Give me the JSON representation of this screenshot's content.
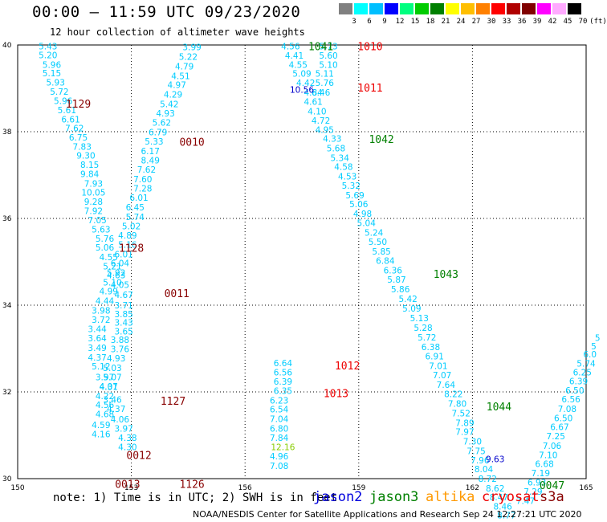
{
  "title": "00:00 – 11:59 UTC 09/23/2020",
  "subtitle": "12 hour collection of altimeter wave heights",
  "note": "note: 1) Time is in UTC; 2) SWH is in feet",
  "credit": "NOAA/NESDIS Center for Satellite Applications and Research   Sep 24 12:27:21 UTC 2020",
  "satellites": [
    {
      "label": "jason2",
      "color": "#0000dd"
    },
    {
      "label": "jason3",
      "color": "#008000"
    },
    {
      "label": "altika",
      "color": "#ff9900"
    },
    {
      "label": "cryosat",
      "color": "#ee0000"
    },
    {
      "label": "s3a",
      "color": "#880000"
    }
  ],
  "colorbar": {
    "colors": [
      "#808080",
      "#00ffff",
      "#00bfff",
      "#0000ff",
      "#00ff7f",
      "#00cc00",
      "#008000",
      "#ffff00",
      "#ffbf00",
      "#ff8000",
      "#ff0000",
      "#b00000",
      "#800000",
      "#ff00ff",
      "#ffaaff",
      "#000000"
    ],
    "labels": [
      "3",
      "6",
      "9",
      "12",
      "15",
      "18",
      "21",
      "24",
      "27",
      "30",
      "33",
      "36",
      "39",
      "42",
      "45",
      "70",
      "(ft)"
    ]
  },
  "chart_data": {
    "type": "scatter",
    "xlabel": "",
    "ylabel": "",
    "xlim": [
      150,
      165
    ],
    "ylim": [
      30,
      40
    ],
    "xticks": [
      "150",
      "153",
      "156",
      "159",
      "162",
      "165"
    ],
    "yticks": [
      "30",
      "32",
      "34",
      "36",
      "38",
      "40"
    ],
    "grid": true,
    "series": [
      {
        "color": "#00ccff",
        "points": [
          [
            150.8,
            39.97,
            "5.43"
          ],
          [
            150.8,
            39.77,
            "5.20"
          ],
          [
            150.9,
            39.55,
            "5.96"
          ],
          [
            150.9,
            39.35,
            "5.15"
          ],
          [
            151.0,
            39.14,
            "5.93"
          ],
          [
            151.1,
            38.93,
            "5.72"
          ],
          [
            151.2,
            38.71,
            "5.96"
          ],
          [
            151.3,
            38.5,
            "5.61"
          ],
          [
            151.4,
            38.29,
            "6.61"
          ],
          [
            151.5,
            38.08,
            "7.62"
          ],
          [
            151.6,
            37.87,
            "6.75"
          ],
          [
            151.7,
            37.66,
            "7.83"
          ],
          [
            151.8,
            37.45,
            "9.30"
          ],
          [
            151.9,
            37.24,
            "8.15"
          ],
          [
            151.9,
            37.03,
            "9.84"
          ],
          [
            152.0,
            36.81,
            "7.93"
          ],
          [
            152.0,
            36.6,
            "10.05"
          ],
          [
            152.0,
            36.39,
            "9.28"
          ],
          [
            152.0,
            36.18,
            "7.92"
          ],
          [
            152.1,
            35.96,
            "7.05"
          ],
          [
            152.2,
            35.75,
            "5.63"
          ],
          [
            152.3,
            35.54,
            "5.76"
          ],
          [
            152.3,
            35.33,
            "5.06"
          ],
          [
            152.4,
            35.11,
            "4.55"
          ],
          [
            152.5,
            34.9,
            "5.21"
          ],
          [
            152.6,
            34.69,
            "4.63"
          ],
          [
            152.7,
            34.47,
            "4.05"
          ],
          [
            152.8,
            34.24,
            "4.67"
          ],
          [
            152.8,
            34.0,
            "3.71"
          ],
          [
            152.8,
            33.8,
            "3.85"
          ],
          [
            152.8,
            33.6,
            "3.43"
          ],
          [
            152.8,
            33.4,
            "3.65"
          ],
          [
            152.7,
            33.2,
            "3.88"
          ],
          [
            152.7,
            32.99,
            "3.76"
          ],
          [
            152.6,
            32.78,
            "4.93"
          ],
          [
            152.5,
            32.56,
            "5.03"
          ],
          [
            152.5,
            32.34,
            "5.07"
          ],
          [
            152.4,
            32.12,
            "4.31"
          ],
          [
            152.3,
            31.91,
            "4.22"
          ],
          [
            152.3,
            31.7,
            "4.56"
          ],
          [
            152.3,
            31.49,
            "4.68"
          ],
          [
            152.2,
            31.24,
            "4.59"
          ],
          [
            152.2,
            31.03,
            "4.16"
          ],
          [
            154.6,
            39.95,
            "3.99"
          ],
          [
            154.5,
            39.73,
            "5.22"
          ],
          [
            154.4,
            39.51,
            "4.79"
          ],
          [
            154.3,
            39.29,
            "4.51"
          ],
          [
            154.2,
            39.08,
            "4.97"
          ],
          [
            154.1,
            38.86,
            "4.29"
          ],
          [
            154.0,
            38.64,
            "5.42"
          ],
          [
            153.9,
            38.43,
            "4.93"
          ],
          [
            153.8,
            38.21,
            "5.62"
          ],
          [
            153.7,
            37.99,
            "6.79"
          ],
          [
            153.6,
            37.78,
            "5.33"
          ],
          [
            153.5,
            37.56,
            "6.17"
          ],
          [
            153.5,
            37.34,
            "8.49"
          ],
          [
            153.4,
            37.13,
            "7.62"
          ],
          [
            153.3,
            36.91,
            "7.60"
          ],
          [
            153.3,
            36.69,
            "7.28"
          ],
          [
            153.2,
            36.48,
            "6.01"
          ],
          [
            153.1,
            36.26,
            "6.45"
          ],
          [
            153.1,
            36.04,
            "5.74"
          ],
          [
            153.0,
            35.82,
            "5.02"
          ],
          [
            152.9,
            35.61,
            "4.89"
          ],
          [
            152.9,
            35.4,
            "5.16"
          ],
          [
            152.8,
            35.18,
            "6.01"
          ],
          [
            152.7,
            34.97,
            "6.04"
          ],
          [
            152.6,
            34.75,
            "5.92"
          ],
          [
            152.5,
            34.53,
            "5.10"
          ],
          [
            152.4,
            34.32,
            "4.99"
          ],
          [
            152.3,
            34.1,
            "4.44"
          ],
          [
            152.2,
            33.88,
            "3.98"
          ],
          [
            152.2,
            33.67,
            "3.72"
          ],
          [
            152.1,
            33.45,
            "3.44"
          ],
          [
            152.1,
            33.24,
            "3.64"
          ],
          [
            152.1,
            33.02,
            "3.49"
          ],
          [
            152.1,
            32.8,
            "4.37"
          ],
          [
            152.2,
            32.59,
            "5.12"
          ],
          [
            152.3,
            32.34,
            "3.97"
          ],
          [
            152.4,
            32.13,
            "4.07"
          ],
          [
            152.5,
            31.82,
            "3.46"
          ],
          [
            152.6,
            31.61,
            "4.37"
          ],
          [
            152.7,
            31.37,
            "4.06"
          ],
          [
            152.8,
            31.16,
            "3.97"
          ],
          [
            152.9,
            30.94,
            "4.38"
          ],
          [
            152.9,
            30.73,
            "4.30"
          ],
          [
            157.2,
            39.97,
            "4.56"
          ],
          [
            157.3,
            39.76,
            "4.41"
          ],
          [
            157.4,
            39.55,
            "4.55"
          ],
          [
            157.5,
            39.34,
            "5.09"
          ],
          [
            157.6,
            39.13,
            "4.42"
          ],
          [
            157.8,
            38.91,
            "4.84"
          ],
          [
            157.8,
            38.69,
            "4.61"
          ],
          [
            157.9,
            38.47,
            "4.10"
          ],
          [
            158.0,
            38.26,
            "4.72"
          ],
          [
            158.1,
            38.05,
            "4.95"
          ],
          [
            158.3,
            37.84,
            "4.33"
          ],
          [
            158.4,
            37.62,
            "5.68"
          ],
          [
            158.5,
            37.4,
            "5.34"
          ],
          [
            158.6,
            37.19,
            "4.58"
          ],
          [
            158.7,
            36.97,
            "4.53"
          ],
          [
            158.8,
            36.76,
            "5.32"
          ],
          [
            158.9,
            36.54,
            "5.69"
          ],
          [
            159.0,
            36.33,
            "5.06"
          ],
          [
            159.1,
            36.11,
            "4.98"
          ],
          [
            159.2,
            35.9,
            "5.04"
          ],
          [
            159.4,
            35.68,
            "5.24"
          ],
          [
            159.5,
            35.46,
            "5.50"
          ],
          [
            159.6,
            35.24,
            "5.85"
          ],
          [
            159.7,
            35.03,
            "6.84"
          ],
          [
            159.9,
            34.81,
            "6.36"
          ],
          [
            160.0,
            34.59,
            "5.87"
          ],
          [
            160.1,
            34.37,
            "5.86"
          ],
          [
            160.3,
            34.15,
            "5.42"
          ],
          [
            160.4,
            33.93,
            "5.09"
          ],
          [
            160.6,
            33.7,
            "5.13"
          ],
          [
            160.7,
            33.48,
            "5.28"
          ],
          [
            160.8,
            33.26,
            "5.72"
          ],
          [
            160.9,
            33.04,
            "6.38"
          ],
          [
            161.0,
            32.82,
            "6.91"
          ],
          [
            161.1,
            32.6,
            "7.01"
          ],
          [
            161.2,
            32.39,
            "7.07"
          ],
          [
            161.3,
            32.17,
            "7.64"
          ],
          [
            161.5,
            31.95,
            "8.22"
          ],
          [
            161.6,
            31.73,
            "7.80"
          ],
          [
            161.7,
            31.51,
            "7.52"
          ],
          [
            161.8,
            31.29,
            "7.89"
          ],
          [
            161.8,
            31.08,
            "7.97"
          ],
          [
            162.0,
            30.86,
            "7.30"
          ],
          [
            162.1,
            30.64,
            "7.75"
          ],
          [
            162.2,
            30.43,
            "7.96"
          ],
          [
            162.3,
            30.22,
            "8.04"
          ],
          [
            162.4,
            30.0,
            "8.72"
          ],
          [
            162.6,
            29.78,
            "8.62"
          ],
          [
            162.7,
            29.57,
            "8.47"
          ],
          [
            162.8,
            29.36,
            "8.46"
          ],
          [
            162.9,
            29.16,
            "8.77"
          ],
          [
            158.2,
            39.97,
            "5.73"
          ],
          [
            158.2,
            39.76,
            "5.60"
          ],
          [
            158.2,
            39.55,
            "5.10"
          ],
          [
            158.1,
            39.34,
            "5.11"
          ],
          [
            158.1,
            39.13,
            "5.76"
          ],
          [
            158.0,
            38.91,
            "6.46"
          ],
          [
            157.0,
            32.67,
            "6.64"
          ],
          [
            157.0,
            32.45,
            "6.56"
          ],
          [
            157.0,
            32.24,
            "6.39"
          ],
          [
            157.0,
            32.03,
            "6.35"
          ],
          [
            156.9,
            31.81,
            "6.23"
          ],
          [
            156.9,
            31.6,
            "6.54"
          ],
          [
            156.9,
            31.38,
            "7.04"
          ],
          [
            156.9,
            31.16,
            "6.80"
          ],
          [
            156.9,
            30.94,
            "7.84"
          ],
          [
            156.9,
            30.52,
            "4.96"
          ],
          [
            156.9,
            30.3,
            "7.08"
          ],
          [
            165.3,
            33.25,
            "5"
          ],
          [
            165.2,
            33.06,
            "5"
          ],
          [
            165.1,
            32.87,
            "6.0"
          ],
          [
            165.0,
            32.66,
            "5.74"
          ],
          [
            164.9,
            32.45,
            "6.25"
          ],
          [
            164.8,
            32.25,
            "6.39"
          ],
          [
            164.7,
            32.04,
            "6.50"
          ],
          [
            164.6,
            31.83,
            "6.56"
          ],
          [
            164.5,
            31.61,
            "7.08"
          ],
          [
            164.4,
            31.4,
            "6.50"
          ],
          [
            164.3,
            31.19,
            "6.67"
          ],
          [
            164.2,
            30.98,
            "7.25"
          ],
          [
            164.1,
            30.76,
            "7.06"
          ],
          [
            164.0,
            30.55,
            "7.10"
          ],
          [
            163.9,
            30.34,
            "6.68"
          ],
          [
            163.8,
            30.13,
            "7.19"
          ],
          [
            163.7,
            29.92,
            "6.93"
          ],
          [
            163.6,
            29.7,
            "7.29"
          ],
          [
            163.4,
            29.49,
            "7.47"
          ]
        ]
      },
      {
        "color": "#0000cc",
        "points": [
          [
            157.5,
            38.97,
            "10.56"
          ],
          [
            162.6,
            30.45,
            "9.63"
          ]
        ]
      },
      {
        "color": "#88cc00",
        "points": [
          [
            157.0,
            30.73,
            "12.16"
          ]
        ]
      }
    ],
    "passes": [
      {
        "label": "1129",
        "x": 151.6,
        "y": 38.65,
        "color": "#880000"
      },
      {
        "label": "0010",
        "x": 154.6,
        "y": 37.77,
        "color": "#880000"
      },
      {
        "label": "1128",
        "x": 153.0,
        "y": 35.32,
        "color": "#880000"
      },
      {
        "label": "0011",
        "x": 154.2,
        "y": 34.28,
        "color": "#880000"
      },
      {
        "label": "1127",
        "x": 154.1,
        "y": 31.8,
        "color": "#880000"
      },
      {
        "label": "0012",
        "x": 153.2,
        "y": 30.55,
        "color": "#880000"
      },
      {
        "label": "0013",
        "x": 152.9,
        "y": 29.88,
        "color": "#880000"
      },
      {
        "label": "1126",
        "x": 154.6,
        "y": 29.88,
        "color": "#880000"
      },
      {
        "label": "1041",
        "x": 158.0,
        "y": 39.97,
        "color": "#008000"
      },
      {
        "label": "1010",
        "x": 159.3,
        "y": 39.97,
        "color": "#ee0000"
      },
      {
        "label": "1011",
        "x": 159.3,
        "y": 39.02,
        "color": "#ee0000"
      },
      {
        "label": "1042",
        "x": 159.6,
        "y": 37.83,
        "color": "#008000"
      },
      {
        "label": "1043",
        "x": 161.3,
        "y": 34.72,
        "color": "#008000"
      },
      {
        "label": "1012",
        "x": 158.7,
        "y": 32.61,
        "color": "#ee0000"
      },
      {
        "label": "1013",
        "x": 158.4,
        "y": 31.97,
        "color": "#ee0000"
      },
      {
        "label": "1044",
        "x": 162.7,
        "y": 31.67,
        "color": "#008000"
      },
      {
        "label": "0047",
        "x": 164.1,
        "y": 29.85,
        "color": "#008000"
      }
    ]
  }
}
